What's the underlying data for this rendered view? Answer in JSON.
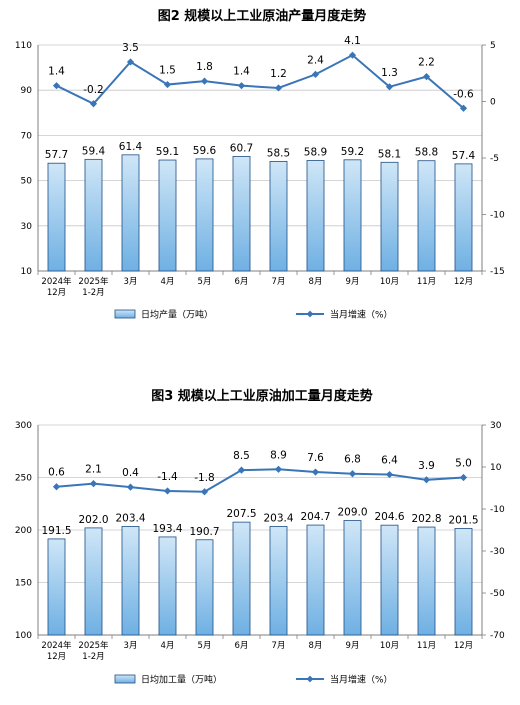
{
  "colors": {
    "bar_fill_top": "#cfe6f7",
    "bar_fill_bottom": "#6fb0e3",
    "bar_stroke": "#1e4f86",
    "line": "#3a75b8",
    "grid": "#c8c8c8",
    "axis": "#7f7f7f"
  },
  "chart_data": [
    {
      "type": "bar+line",
      "title": "图2  规模以上工业原油产量月度走势",
      "categories": [
        [
          "2024年",
          "12月"
        ],
        [
          "2025年",
          "1-2月"
        ],
        [
          "3月"
        ],
        [
          "4月"
        ],
        [
          "5月"
        ],
        [
          "6月"
        ],
        [
          "7月"
        ],
        [
          "8月"
        ],
        [
          "9月"
        ],
        [
          "10月"
        ],
        [
          "11月"
        ],
        [
          "12月"
        ]
      ],
      "left_axis": {
        "ylim": [
          10,
          110
        ],
        "ticks": [
          10,
          30,
          50,
          70,
          90,
          110
        ]
      },
      "right_axis": {
        "ylim": [
          -15,
          5
        ],
        "ticks": [
          -15,
          -10,
          -5,
          0,
          5
        ]
      },
      "series": [
        {
          "name": "日均产量（万吨）",
          "type": "bar",
          "axis": "left",
          "values": [
            57.7,
            59.4,
            61.4,
            59.1,
            59.6,
            60.7,
            58.5,
            58.9,
            59.2,
            58.1,
            58.8,
            57.4
          ],
          "labels": [
            "57.7",
            "59.4",
            "61.4",
            "59.1",
            "59.6",
            "60.7",
            "58.5",
            "58.9",
            "59.2",
            "58.1",
            "58.8",
            "57.4"
          ]
        },
        {
          "name": "当月增速（%）",
          "type": "line",
          "axis": "right",
          "values": [
            1.4,
            -0.2,
            3.5,
            1.5,
            1.8,
            1.4,
            1.2,
            2.4,
            4.1,
            1.3,
            2.2,
            -0.6
          ],
          "labels": [
            "1.4",
            "-0.2",
            "3.5",
            "1.5",
            "1.8",
            "1.4",
            "1.2",
            "2.4",
            "4.1",
            "1.3",
            "2.2",
            "-0.6"
          ]
        }
      ],
      "grid": true,
      "legend": "bottom-center"
    },
    {
      "type": "bar+line",
      "title": "图3  规模以上工业原油加工量月度走势",
      "categories": [
        [
          "2024年",
          "12月"
        ],
        [
          "2025年",
          "1-2月"
        ],
        [
          "3月"
        ],
        [
          "4月"
        ],
        [
          "5月"
        ],
        [
          "6月"
        ],
        [
          "7月"
        ],
        [
          "8月"
        ],
        [
          "9月"
        ],
        [
          "10月"
        ],
        [
          "11月"
        ],
        [
          "12月"
        ]
      ],
      "left_axis": {
        "ylim": [
          100,
          300
        ],
        "ticks": [
          100,
          150,
          200,
          250,
          300
        ]
      },
      "right_axis": {
        "ylim": [
          -70,
          30
        ],
        "ticks": [
          -70,
          -50,
          -30,
          -10,
          10,
          30
        ]
      },
      "series": [
        {
          "name": "日均加工量（万吨）",
          "type": "bar",
          "axis": "left",
          "values": [
            191.5,
            202.0,
            203.4,
            193.4,
            190.7,
            207.5,
            203.4,
            204.7,
            209.0,
            204.6,
            202.8,
            201.5
          ],
          "labels": [
            "191.5",
            "202.0",
            "203.4",
            "193.4",
            "190.7",
            "207.5",
            "203.4",
            "204.7",
            "209.0",
            "204.6",
            "202.8",
            "201.5"
          ]
        },
        {
          "name": "当月增速（%）",
          "type": "line",
          "axis": "right",
          "values": [
            0.6,
            2.1,
            0.4,
            -1.4,
            -1.8,
            8.5,
            8.9,
            7.6,
            6.8,
            6.4,
            3.9,
            5.0
          ],
          "labels": [
            "0.6",
            "2.1",
            "0.4",
            "-1.4",
            "-1.8",
            "8.5",
            "8.9",
            "7.6",
            "6.8",
            "6.4",
            "3.9",
            "5.0"
          ]
        }
      ],
      "grid": true,
      "legend": "bottom-center"
    }
  ]
}
